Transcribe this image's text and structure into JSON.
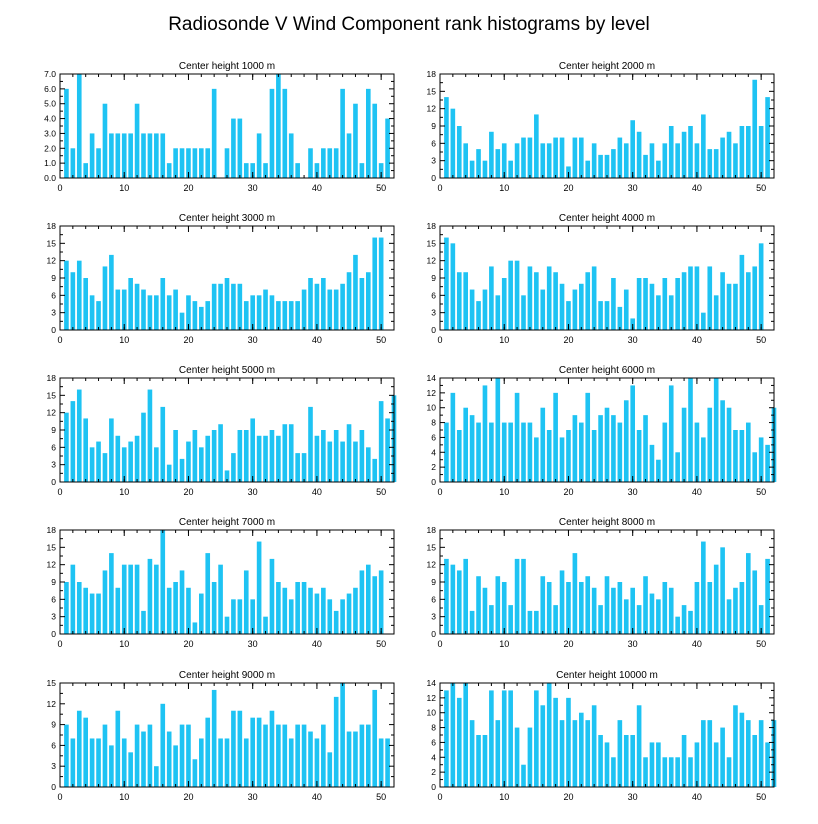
{
  "title": "Radiosonde V Wind Component rank histograms by level",
  "colors": {
    "bar": "#1ec3f3",
    "axis": "#000000"
  },
  "chart_data": [
    {
      "type": "bar",
      "title": "Center height 1000 m",
      "x_ticks": [
        0,
        10,
        20,
        30,
        40,
        50
      ],
      "y_ticks": [
        "0.0",
        "1.0",
        "2.0",
        "3.0",
        "4.0",
        "5.0",
        "6.0",
        "7.0"
      ],
      "ylim": [
        0,
        7
      ],
      "xlim": [
        0,
        52
      ],
      "values": [
        6,
        2,
        7,
        1,
        3,
        2,
        5,
        3,
        3,
        3,
        3,
        5,
        3,
        3,
        3,
        3,
        1,
        2,
        2,
        2,
        2,
        2,
        2,
        6,
        0,
        2,
        4,
        4,
        1,
        1,
        3,
        1,
        6,
        7,
        6,
        3,
        1,
        0,
        2,
        1,
        2,
        2,
        2,
        6,
        3,
        5,
        1,
        6,
        5,
        1,
        4
      ]
    },
    {
      "type": "bar",
      "title": "Center height 2000 m",
      "x_ticks": [
        0,
        10,
        20,
        30,
        40,
        50
      ],
      "y_ticks": [
        "0",
        "3",
        "6",
        "9",
        "12",
        "15",
        "18"
      ],
      "ylim": [
        0,
        18
      ],
      "xlim": [
        0,
        52
      ],
      "values": [
        14,
        12,
        9,
        6,
        3,
        5,
        3,
        8,
        5,
        6,
        3,
        6,
        7,
        7,
        11,
        6,
        6,
        7,
        7,
        2,
        7,
        7,
        3,
        6,
        4,
        4,
        5,
        7,
        6,
        10,
        8,
        4,
        6,
        3,
        6,
        9,
        6,
        8,
        9,
        6,
        11,
        5,
        5,
        7,
        8,
        6,
        9,
        9,
        17,
        9,
        14
      ]
    },
    {
      "type": "bar",
      "title": "Center height 3000 m",
      "x_ticks": [
        0,
        10,
        20,
        30,
        40,
        50
      ],
      "y_ticks": [
        "0",
        "3",
        "6",
        "9",
        "12",
        "15",
        "18"
      ],
      "ylim": [
        0,
        18
      ],
      "xlim": [
        0,
        52
      ],
      "values": [
        12,
        10,
        12,
        9,
        6,
        5,
        11,
        13,
        7,
        7,
        9,
        8,
        7,
        6,
        6,
        9,
        6,
        7,
        3,
        6,
        5,
        4,
        5,
        8,
        8,
        9,
        8,
        8,
        5,
        6,
        6,
        7,
        6,
        5,
        5,
        5,
        5,
        7,
        9,
        8,
        9,
        7,
        7,
        8,
        10,
        13,
        9,
        10,
        16,
        16,
        0
      ]
    },
    {
      "type": "bar",
      "title": "Center height 4000 m",
      "x_ticks": [
        0,
        10,
        20,
        30,
        40,
        50
      ],
      "y_ticks": [
        "0",
        "3",
        "6",
        "9",
        "12",
        "15",
        "18"
      ],
      "ylim": [
        0,
        18
      ],
      "xlim": [
        0,
        52
      ],
      "values": [
        16,
        15,
        10,
        10,
        7,
        5,
        7,
        11,
        6,
        9,
        12,
        12,
        6,
        11,
        10,
        7,
        11,
        10,
        8,
        5,
        7,
        8,
        10,
        11,
        5,
        5,
        9,
        4,
        7,
        2,
        9,
        9,
        8,
        6,
        9,
        6,
        9,
        10,
        11,
        11,
        3,
        11,
        6,
        10,
        8,
        8,
        13,
        10,
        11,
        15,
        0
      ]
    },
    {
      "type": "bar",
      "title": "Center height 5000 m",
      "x_ticks": [
        0,
        10,
        20,
        30,
        40,
        50
      ],
      "y_ticks": [
        "0",
        "3",
        "6",
        "9",
        "12",
        "15",
        "18"
      ],
      "ylim": [
        0,
        18
      ],
      "xlim": [
        0,
        52
      ],
      "values": [
        12,
        14,
        16,
        11,
        6,
        7,
        5,
        11,
        8,
        6,
        7,
        8,
        12,
        16,
        6,
        13,
        3,
        9,
        4,
        7,
        9,
        6,
        8,
        9,
        10,
        2,
        5,
        9,
        9,
        11,
        8,
        8,
        9,
        8,
        10,
        10,
        5,
        5,
        13,
        8,
        9,
        7,
        9,
        7,
        10,
        7,
        9,
        6,
        4,
        14,
        11,
        15
      ]
    },
    {
      "type": "bar",
      "title": "Center height 6000 m",
      "x_ticks": [
        0,
        10,
        20,
        30,
        40,
        50
      ],
      "y_ticks": [
        "0",
        "2",
        "4",
        "6",
        "8",
        "10",
        "12",
        "14"
      ],
      "ylim": [
        0,
        14
      ],
      "xlim": [
        0,
        52
      ],
      "values": [
        8,
        12,
        7,
        10,
        9,
        8,
        13,
        8,
        14,
        8,
        8,
        12,
        8,
        8,
        6,
        10,
        7,
        12,
        6,
        7,
        9,
        8,
        12,
        7,
        9,
        10,
        9,
        8,
        11,
        13,
        7,
        9,
        5,
        3,
        8,
        13,
        4,
        10,
        14,
        8,
        6,
        10,
        14,
        11,
        10,
        7,
        7,
        8,
        4,
        6,
        5,
        10
      ]
    },
    {
      "type": "bar",
      "title": "Center height 7000 m",
      "x_ticks": [
        0,
        10,
        20,
        30,
        40,
        50
      ],
      "y_ticks": [
        "0",
        "3",
        "6",
        "9",
        "12",
        "15",
        "18"
      ],
      "ylim": [
        0,
        18
      ],
      "xlim": [
        0,
        52
      ],
      "values": [
        9,
        12,
        9,
        8,
        7,
        7,
        11,
        14,
        8,
        12,
        12,
        12,
        4,
        13,
        12,
        18,
        8,
        9,
        11,
        8,
        2,
        7,
        14,
        9,
        12,
        3,
        6,
        6,
        11,
        6,
        16,
        3,
        13,
        9,
        8,
        6,
        9,
        9,
        8,
        7,
        8,
        6,
        4,
        6,
        7,
        8,
        11,
        12,
        10,
        11
      ]
    },
    {
      "type": "bar",
      "title": "Center height 8000 m",
      "x_ticks": [
        0,
        10,
        20,
        30,
        40,
        50
      ],
      "y_ticks": [
        "0",
        "3",
        "6",
        "9",
        "12",
        "15",
        "18"
      ],
      "ylim": [
        0,
        18
      ],
      "xlim": [
        0,
        52
      ],
      "values": [
        13,
        12,
        11,
        13,
        4,
        10,
        8,
        5,
        10,
        9,
        5,
        13,
        13,
        4,
        4,
        10,
        9,
        5,
        11,
        9,
        14,
        9,
        10,
        8,
        5,
        10,
        8,
        9,
        6,
        8,
        5,
        10,
        7,
        6,
        9,
        8,
        3,
        5,
        4,
        9,
        16,
        9,
        12,
        15,
        6,
        8,
        9,
        14,
        11,
        5,
        13
      ]
    },
    {
      "type": "bar",
      "title": "Center height 9000 m",
      "x_ticks": [
        0,
        10,
        20,
        30,
        40,
        50
      ],
      "y_ticks": [
        "0",
        "3",
        "6",
        "9",
        "12",
        "15"
      ],
      "ylim": [
        0,
        15
      ],
      "xlim": [
        0,
        52
      ],
      "values": [
        9,
        7,
        11,
        10,
        7,
        7,
        9,
        6,
        11,
        7,
        5,
        9,
        8,
        9,
        3,
        12,
        8,
        6,
        9,
        9,
        4,
        7,
        10,
        14,
        7,
        7,
        11,
        11,
        7,
        10,
        10,
        9,
        11,
        9,
        9,
        7,
        9,
        9,
        8,
        7,
        9,
        5,
        13,
        15,
        8,
        8,
        9,
        9,
        14,
        7,
        7
      ]
    },
    {
      "type": "bar",
      "title": "Center height 10000 m",
      "x_ticks": [
        0,
        10,
        20,
        30,
        40,
        50
      ],
      "y_ticks": [
        "0",
        "2",
        "4",
        "6",
        "8",
        "10",
        "12",
        "14"
      ],
      "ylim": [
        0,
        14
      ],
      "xlim": [
        0,
        52
      ],
      "values": [
        13,
        14,
        12,
        14,
        9,
        7,
        7,
        13,
        9,
        13,
        13,
        8,
        3,
        8,
        13,
        11,
        14,
        12,
        9,
        12,
        9,
        10,
        9,
        11,
        7,
        6,
        4,
        9,
        7,
        7,
        11,
        4,
        6,
        6,
        4,
        4,
        4,
        7,
        4,
        6,
        9,
        9,
        6,
        8,
        4,
        11,
        10,
        9,
        7,
        9,
        6,
        9
      ]
    }
  ]
}
